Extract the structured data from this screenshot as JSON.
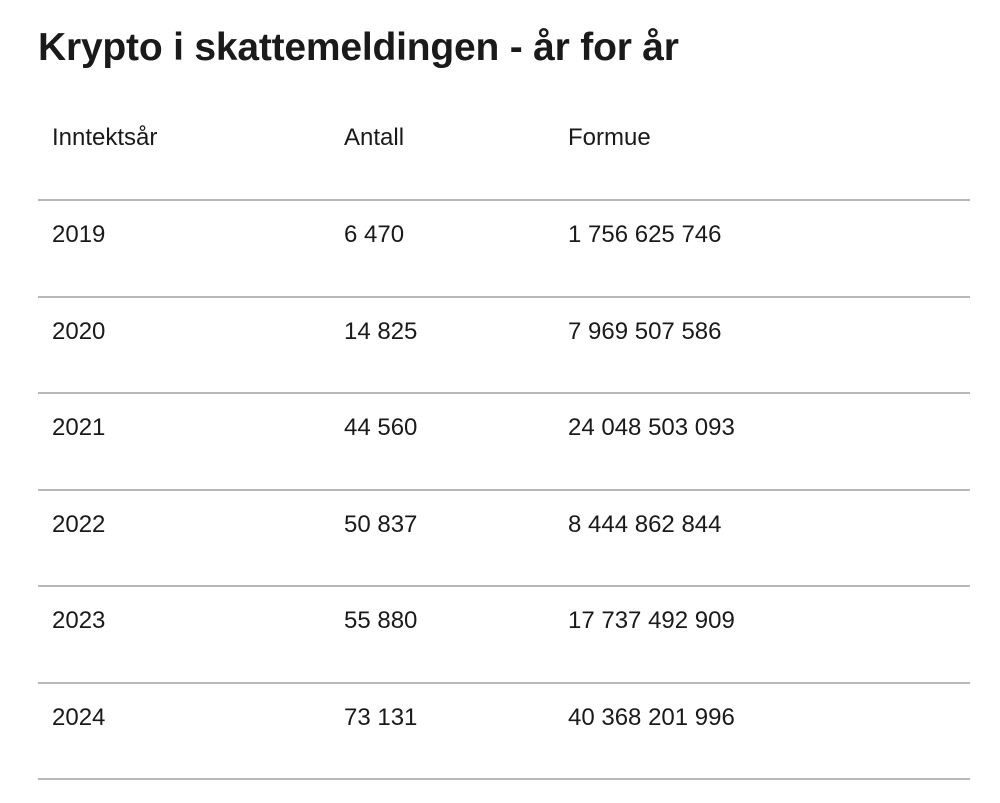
{
  "title": "Krypto i skattemeldingen - år for år",
  "table": {
    "headers": [
      "Inntektsår",
      "Antall",
      "Formue"
    ],
    "rows": [
      [
        "2019",
        "6 470",
        "1 756 625 746"
      ],
      [
        "2020",
        "14 825",
        "7 969 507 586"
      ],
      [
        "2021",
        "44 560",
        "24 048 503 093"
      ],
      [
        "2022",
        "50 837",
        "8 444 862 844"
      ],
      [
        "2023",
        "55 880",
        "17 737 492 909"
      ],
      [
        "2024",
        "73 131",
        "40 368 201 996"
      ]
    ]
  }
}
